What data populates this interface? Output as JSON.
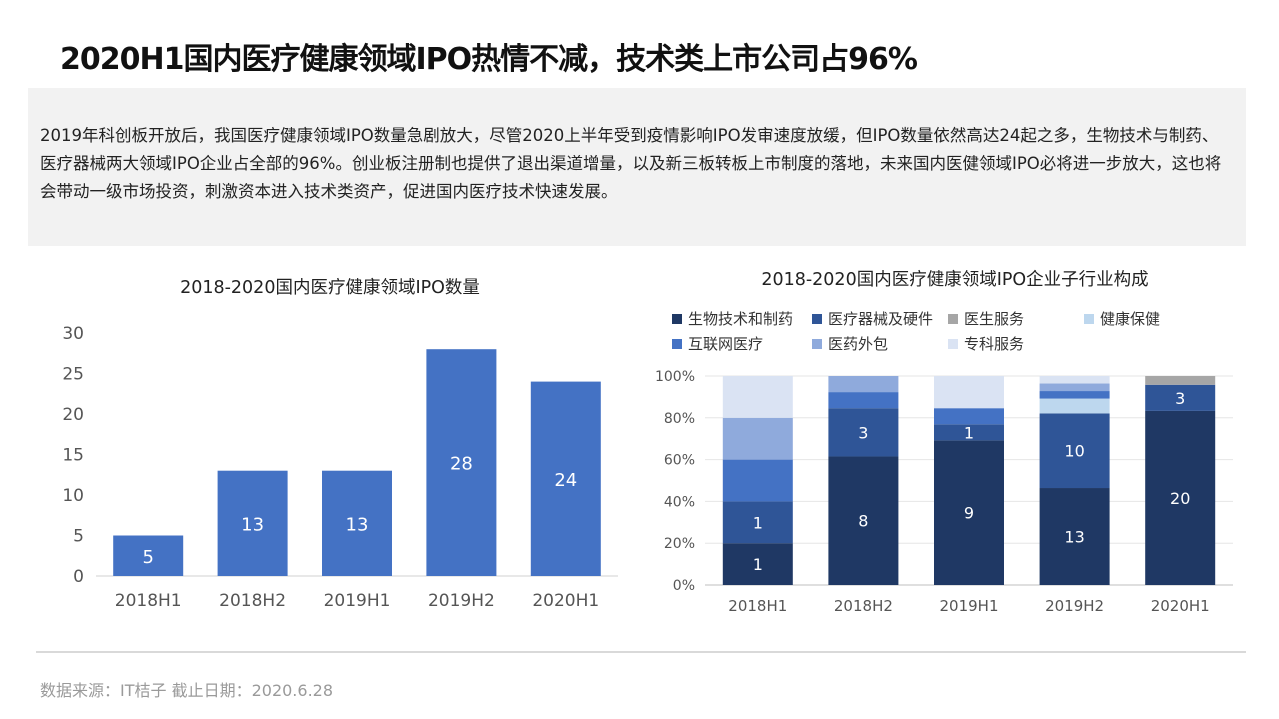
{
  "page": {
    "title": "2020H1国内医疗健康领域IPO热情不减，技术类上市公司占96%",
    "summary": "2019年科创板开放后，我国医疗健康领域IPO数量急剧放大，尽管2020上半年受到疫情影响IPO发审速度放缓，但IPO数量依然高达24起之多，生物技术与制药、医疗器械两大领域IPO企业占全部的96%。创业板注册制也提供了退出渠道增量，以及新三板转板上市制度的落地，未来国内医健领域IPO必将进一步放大，这也将会带动一级市场投资，刺激资本进入技术类资产，促进国内医疗技术快速发展。",
    "source": "数据来源：IT桔子  截止日期：2020.6.28"
  },
  "chart_data": [
    {
      "type": "bar",
      "title": "2018-2020国内医疗健康领域IPO数量",
      "categories": [
        "2018H1",
        "2018H2",
        "2019H1",
        "2019H2",
        "2020H1"
      ],
      "values": [
        5,
        13,
        13,
        28,
        24
      ],
      "ylim": [
        0,
        30
      ],
      "yticks": [
        0,
        5,
        10,
        15,
        20,
        25,
        30
      ],
      "color": "#4472c4",
      "grid": false
    },
    {
      "type": "bar",
      "stacked": "percent",
      "title": "2018-2020国内医疗健康领域IPO企业子行业构成",
      "categories": [
        "2018H1",
        "2018H2",
        "2019H1",
        "2019H2",
        "2020H1"
      ],
      "ylim": [
        0,
        100
      ],
      "yticks": [
        "0%",
        "20%",
        "40%",
        "60%",
        "80%",
        "100%"
      ],
      "legend_position": "top",
      "series": [
        {
          "name": "生物技术和制药",
          "color": "#1f3864",
          "values": [
            20,
            61.5,
            69.2,
            46.4,
            83.3
          ],
          "labels": [
            "1",
            "8",
            "9",
            "13",
            "20"
          ]
        },
        {
          "name": "医疗器械及硬件",
          "color": "#2f5597",
          "values": [
            20,
            23.1,
            7.7,
            35.7,
            12.5
          ],
          "labels": [
            "1",
            "3",
            "1",
            "10",
            "3"
          ]
        },
        {
          "name": "医生服务",
          "color": "#a6a6a6",
          "values": [
            0,
            0,
            0,
            0,
            4.2
          ],
          "labels": [
            "",
            "",
            "",
            "",
            ""
          ]
        },
        {
          "name": "健康保健",
          "color": "#bdd7ee",
          "values": [
            0,
            0,
            0,
            7.1,
            0
          ],
          "labels": [
            "",
            "",
            "",
            "",
            ""
          ]
        },
        {
          "name": "互联网医疗",
          "color": "#4472c4",
          "values": [
            20,
            7.7,
            7.7,
            3.6,
            0
          ],
          "labels": [
            "",
            "",
            "",
            "",
            ""
          ]
        },
        {
          "name": "医药外包",
          "color": "#8faadc",
          "values": [
            20,
            7.7,
            0,
            3.6,
            0
          ],
          "labels": [
            "",
            "",
            "",
            "",
            ""
          ]
        },
        {
          "name": "专科服务",
          "color": "#dae3f3",
          "values": [
            20,
            0,
            15.4,
            3.6,
            0
          ],
          "labels": [
            "",
            "",
            "",
            "",
            ""
          ]
        }
      ]
    }
  ]
}
